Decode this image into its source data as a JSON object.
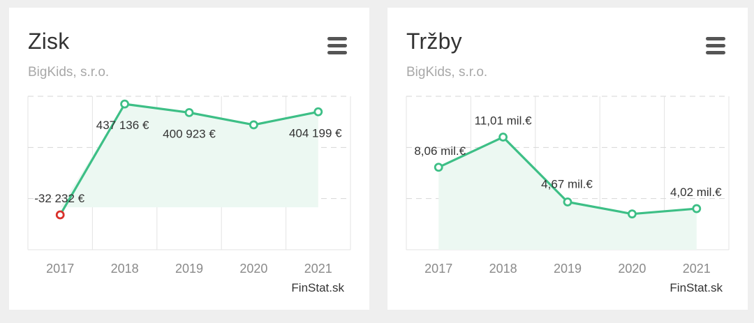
{
  "cards": [
    {
      "title": "Zisk",
      "subtitle": "BigKids, s.r.o.",
      "credit": "FinStat.sk"
    },
    {
      "title": "Tržby",
      "subtitle": "BigKids, s.r.o.",
      "credit": "FinStat.sk"
    }
  ],
  "colors": {
    "line": "#3dbf86",
    "area": "#ecf8f2",
    "negative_marker": "#d9312b",
    "grid": "#e3e3e3",
    "label": "#333333",
    "axis_label": "#8a8a8a"
  },
  "chart_data": [
    {
      "type": "area",
      "title": "Zisk",
      "categories": [
        "2017",
        "2018",
        "2019",
        "2020",
        "2021"
      ],
      "values": [
        -32232,
        437136,
        400923,
        349000,
        404199
      ],
      "labels": [
        "-32 232 €",
        "437 136 €",
        "400 923 €",
        "",
        "404 199 €"
      ],
      "ylim": [
        -180000,
        470000
      ],
      "grid": true,
      "negative_color": "#d9312b"
    },
    {
      "type": "area",
      "title": "Tržby",
      "categories": [
        "2017",
        "2018",
        "2019",
        "2020",
        "2021"
      ],
      "values": [
        8.06,
        11.01,
        4.67,
        3.5,
        4.02
      ],
      "labels": [
        "8,06 mil.€",
        "11,01 mil.€",
        "4,67 mil.€",
        "",
        "4,02 mil.€"
      ],
      "unit": "mil.€",
      "ylim": [
        0,
        15
      ],
      "grid": true
    }
  ]
}
